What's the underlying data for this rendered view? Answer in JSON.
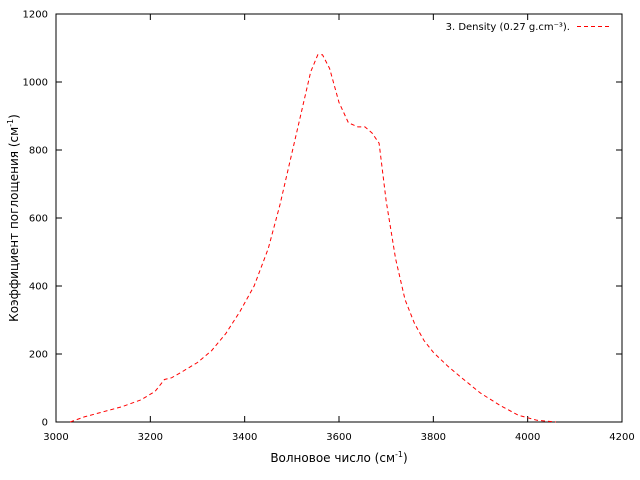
{
  "chart_data": {
    "type": "line",
    "xlabel": {
      "base": "Волновое число (см",
      "sup": "-1",
      "tail": ")"
    },
    "ylabel": {
      "base": "Коэффициент поглощения (см",
      "sup": "-1",
      "tail": ")"
    },
    "xlim": [
      3000,
      4200
    ],
    "ylim": [
      0,
      1200
    ],
    "xticks": [
      3000,
      3200,
      3400,
      3600,
      3800,
      4000,
      4200
    ],
    "yticks": [
      0,
      200,
      400,
      600,
      800,
      1000,
      1200
    ],
    "grid": false,
    "legend_position": "top-right",
    "series": [
      {
        "name": "3. Density (0.27 g.cm⁻³).",
        "color": "#ff0000",
        "style": "dashed",
        "x": [
          3030,
          3060,
          3100,
          3140,
          3180,
          3210,
          3230,
          3245,
          3270,
          3300,
          3330,
          3360,
          3390,
          3420,
          3450,
          3475,
          3500,
          3520,
          3540,
          3555,
          3565,
          3580,
          3600,
          3620,
          3640,
          3655,
          3670,
          3685,
          3700,
          3720,
          3740,
          3760,
          3780,
          3800,
          3830,
          3860,
          3900,
          3940,
          3980,
          4020,
          4060
        ],
        "y": [
          0,
          15,
          30,
          45,
          65,
          90,
          125,
          130,
          150,
          175,
          210,
          260,
          325,
          400,
          510,
          640,
          790,
          910,
          1030,
          1080,
          1080,
          1040,
          940,
          880,
          868,
          868,
          850,
          820,
          650,
          480,
          360,
          290,
          240,
          205,
          165,
          130,
          85,
          50,
          20,
          5,
          0
        ]
      }
    ]
  }
}
